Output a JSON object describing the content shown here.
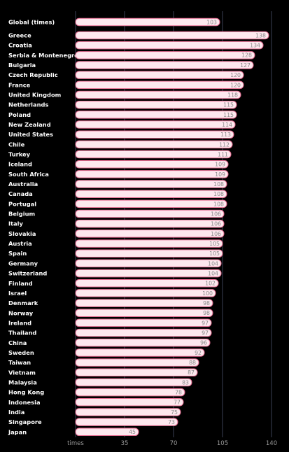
{
  "chart_data": {
    "type": "bar",
    "orientation": "horizontal",
    "title": "",
    "xlabel": "times",
    "ylabel": "",
    "xlim": [
      0,
      140
    ],
    "x_ticks": [
      35,
      70,
      105,
      140
    ],
    "grid": true,
    "bar_color": "#fde8ee",
    "bar_edge_color": "#e26a8f",
    "highlight": {
      "label": "Global (times)",
      "value": 103
    },
    "categories": [
      "Greece",
      "Croatia",
      "Serbia & Montenegro",
      "Bulgaria",
      "Czech Republic",
      "France",
      "United Kingdom",
      "Netherlands",
      "Poland",
      "New Zealand",
      "United States",
      "Chile",
      "Turkey",
      "Iceland",
      "South Africa",
      "Australia",
      "Canada",
      "Portugal",
      "Belgium",
      "Italy",
      "Slovakia",
      "Austria",
      "Spain",
      "Germany",
      "Switzerland",
      "Finland",
      "Israel",
      "Denmark",
      "Norway",
      "Ireland",
      "Thailand",
      "China",
      "Sweden",
      "Taiwan",
      "Vietnam",
      "Malaysia",
      "Hong Kong",
      "Indonesia",
      "India",
      "Singapore",
      "Japan"
    ],
    "values": [
      138,
      134,
      128,
      127,
      120,
      120,
      118,
      115,
      115,
      114,
      113,
      112,
      111,
      109,
      109,
      108,
      108,
      108,
      106,
      106,
      106,
      105,
      105,
      104,
      104,
      102,
      100,
      98,
      98,
      97,
      97,
      96,
      92,
      88,
      87,
      83,
      78,
      77,
      75,
      73,
      45
    ]
  }
}
